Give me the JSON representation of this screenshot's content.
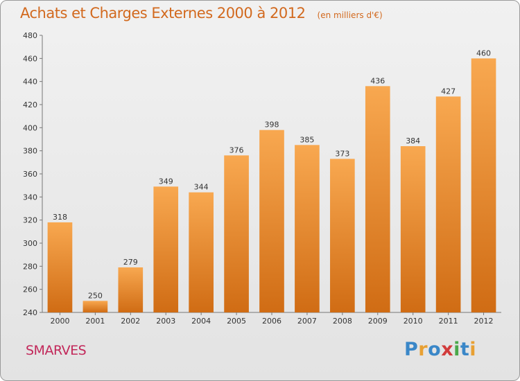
{
  "header": {
    "title": "Achats et Charges Externes 2000 à 2012",
    "subtitle": "(en milliers d'€)"
  },
  "footer": {
    "commune": "SMARVES",
    "logo": {
      "text": "Proxiti",
      "letters": [
        {
          "ch": "P",
          "color": "#3a87c8"
        },
        {
          "ch": "r",
          "color": "#e8a033"
        },
        {
          "ch": "o",
          "color": "#3a87c8"
        },
        {
          "ch": "x",
          "color": "#d13b3b"
        },
        {
          "ch": "i",
          "color": "#4aa84a"
        },
        {
          "ch": "t",
          "color": "#3a87c8"
        },
        {
          "ch": "i",
          "color": "#e8a033"
        }
      ]
    }
  },
  "colors": {
    "bar_light": "#f8a850",
    "bar_dark": "#d06c14",
    "title": "#d2691e",
    "commune": "#c2285a"
  },
  "chart_data": {
    "type": "bar",
    "categories": [
      "2000",
      "2001",
      "2002",
      "2003",
      "2004",
      "2005",
      "2006",
      "2007",
      "2008",
      "2009",
      "2010",
      "2011",
      "2012"
    ],
    "values": [
      318,
      250,
      279,
      349,
      344,
      376,
      398,
      385,
      373,
      436,
      384,
      427,
      460
    ],
    "data_labels": [
      "318",
      "250",
      "279",
      "349",
      "344",
      "376",
      "398",
      "385",
      "373",
      "436",
      "384",
      "427",
      "460"
    ],
    "title": "Achats et Charges Externes 2000 à 2012",
    "subtitle": "(en milliers d'€)",
    "xlabel": "",
    "ylabel": "",
    "ylim": [
      240,
      480
    ],
    "yticks": [
      240,
      260,
      280,
      300,
      320,
      340,
      360,
      380,
      400,
      420,
      440,
      460,
      480
    ],
    "grid": false,
    "legend": "none"
  }
}
